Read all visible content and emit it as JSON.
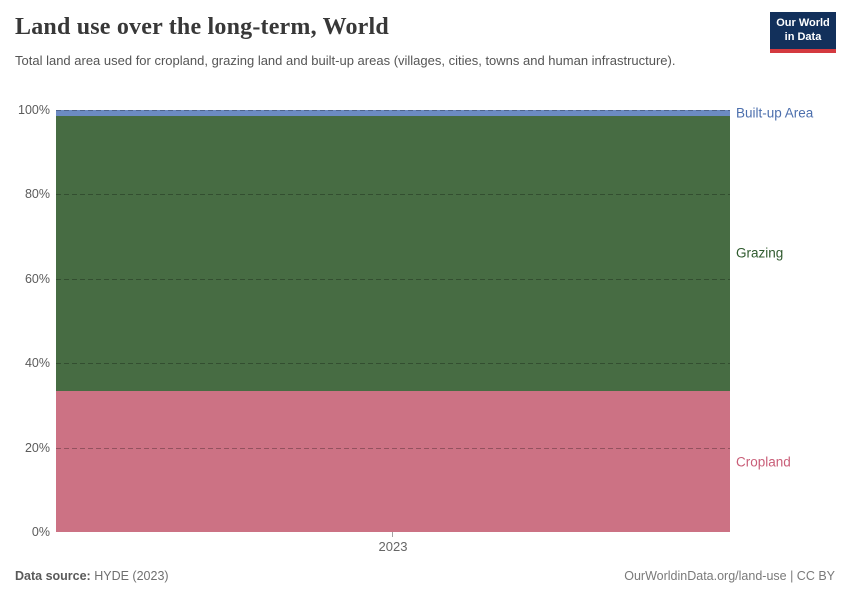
{
  "header": {
    "title": "Land use over the long-term, World",
    "subtitle": "Total land area used for cropland, grazing land and built-up areas (villages, cities, towns and human infrastructure).",
    "logo": {
      "line1": "Our World",
      "line2": "in Data"
    }
  },
  "chart_data": {
    "type": "area",
    "stacked": true,
    "relative_mode": true,
    "title": "Land use over the long-term, World",
    "x": [
      2023
    ],
    "xticks": [
      "2023"
    ],
    "ylim": [
      0,
      100
    ],
    "yticks": [
      "100%",
      "80%",
      "60%",
      "40%",
      "20%",
      "0%"
    ],
    "grid": "dashed-horizontal",
    "legend_position": "right-entity-labels",
    "series": [
      {
        "name": "Cropland",
        "values": [
          33.4
        ],
        "color": "#CC7284",
        "label_color": "#C95E78"
      },
      {
        "name": "Grazing",
        "values": [
          65.3
        ],
        "color": "#476C43",
        "label_color": "#2F5A2E"
      },
      {
        "name": "Built-up Area",
        "values": [
          1.3
        ],
        "color": "#6C8BC3",
        "label_color": "#4C6FAD"
      }
    ]
  },
  "footer": {
    "source_label": "Data source:",
    "source_value": "HYDE (2023)",
    "credit": "OurWorldinData.org/land-use | CC BY"
  }
}
